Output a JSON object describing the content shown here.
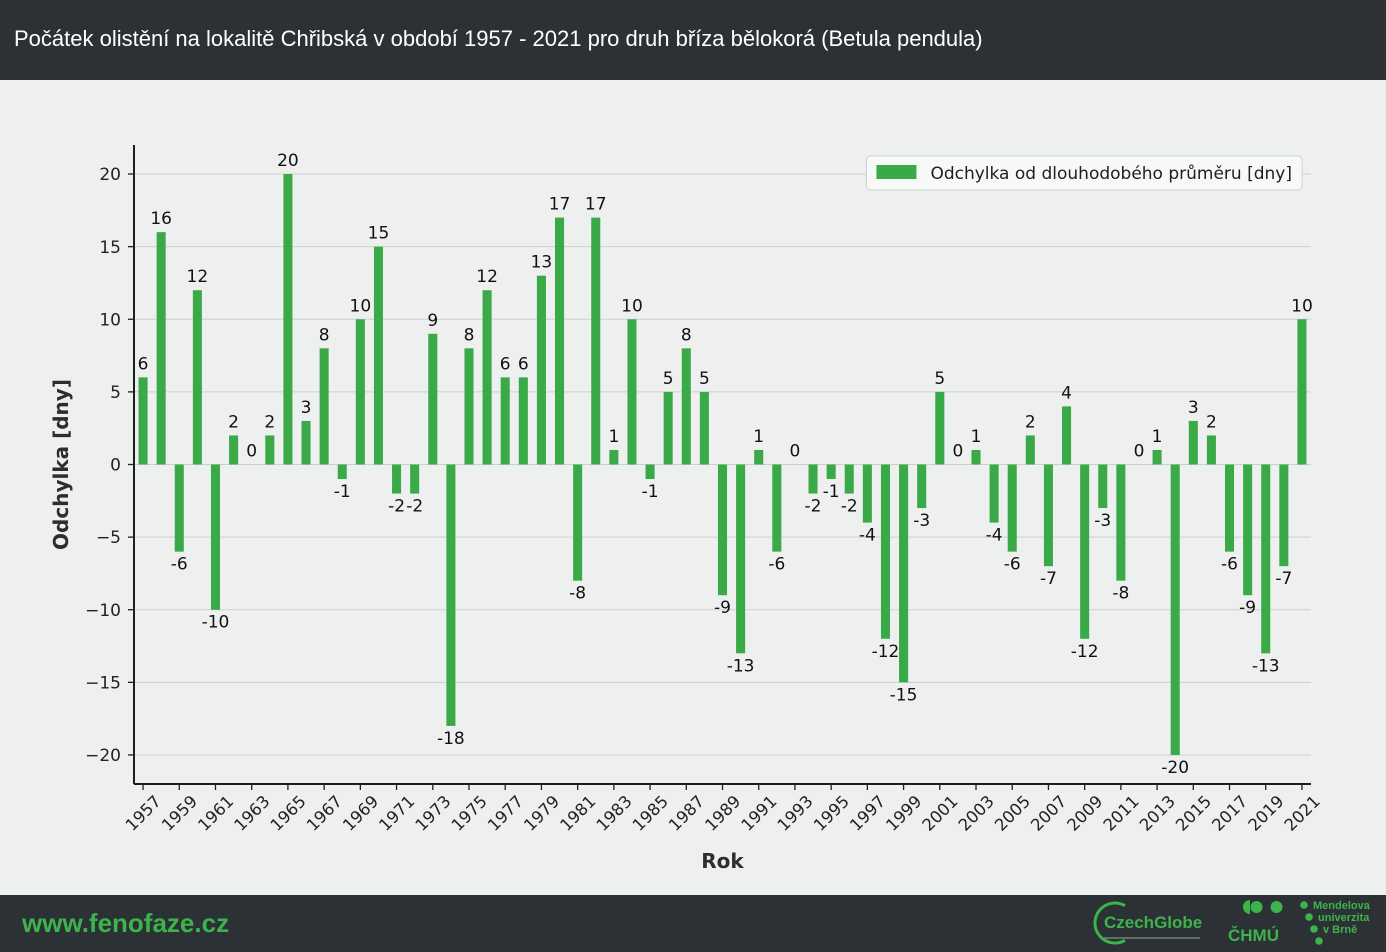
{
  "header": {
    "title": "Počátek olistění na lokalitě Chřibská v období 1957 - 2021 pro druh bříza bělokorá (Betula pendula)"
  },
  "colors": {
    "band_bg": "#2c3135",
    "page_bg": "#eef0f0",
    "bar": "#3aaa48",
    "brand_green": "#3cb44b"
  },
  "chart_data": {
    "type": "bar",
    "x": [
      1957,
      1958,
      1959,
      1960,
      1961,
      1962,
      1963,
      1964,
      1965,
      1966,
      1967,
      1968,
      1969,
      1970,
      1971,
      1972,
      1973,
      1974,
      1975,
      1976,
      1977,
      1978,
      1979,
      1980,
      1981,
      1982,
      1983,
      1984,
      1985,
      1986,
      1987,
      1988,
      1989,
      1990,
      1991,
      1992,
      1993,
      1994,
      1995,
      1996,
      1997,
      1998,
      1999,
      2000,
      2001,
      2002,
      2003,
      2004,
      2005,
      2006,
      2007,
      2008,
      2009,
      2010,
      2011,
      2012,
      2013,
      2014,
      2015,
      2016,
      2017,
      2018,
      2019,
      2020,
      2021
    ],
    "series": [
      {
        "name": "Odchylka od dlouhodobého průměru [dny]",
        "values": [
          6,
          16,
          -6,
          12,
          -10,
          2,
          0,
          2,
          20,
          3,
          8,
          -1,
          10,
          15,
          -2,
          -2,
          9,
          -18,
          8,
          12,
          6,
          6,
          13,
          17,
          -8,
          17,
          1,
          10,
          -1,
          5,
          8,
          5,
          -9,
          -13,
          1,
          -6,
          0,
          -2,
          -1,
          -2,
          -4,
          -12,
          -15,
          -3,
          5,
          0,
          1,
          -4,
          -6,
          2,
          -7,
          4,
          -12,
          -3,
          -8,
          0,
          1,
          -20,
          3,
          2,
          -6,
          -9,
          -13,
          -7,
          10
        ],
        "data_labels": [
          "6",
          "16",
          "-6",
          "12",
          "-10",
          "2",
          "0",
          "2",
          "20",
          "3",
          "8",
          "-1",
          "10",
          "15",
          "-2",
          "-2",
          "9",
          "-18",
          "8",
          "12",
          "6",
          "6",
          "13",
          "17",
          "-8",
          "17",
          "1",
          "10",
          "-1",
          "5",
          "8",
          "5",
          "-9",
          "-13",
          "1",
          "-6",
          "0",
          "-2",
          "-1",
          "-2",
          "-4",
          "-12",
          "-15",
          "-3",
          "5",
          "0",
          "1",
          "-4",
          "-6",
          "2",
          "-7",
          "4",
          "-12",
          "-3",
          "-8",
          "0",
          "1",
          "-20",
          "3",
          "2",
          "-6",
          "-9",
          "-13",
          "-7",
          "10"
        ]
      }
    ],
    "xlabel": "Rok",
    "ylabel": "Odchylka [dny]",
    "x_tick_labels": [
      "1957",
      "1959",
      "1961",
      "1963",
      "1965",
      "1967",
      "1969",
      "1971",
      "1973",
      "1975",
      "1977",
      "1979",
      "1981",
      "1983",
      "1985",
      "1987",
      "1989",
      "1991",
      "1993",
      "1995",
      "1997",
      "1999",
      "2001",
      "2003",
      "2005",
      "2007",
      "2009",
      "2011",
      "2013",
      "2015",
      "2017",
      "2019",
      "2021"
    ],
    "y_ticks": [
      20,
      15,
      10,
      5,
      0,
      -5,
      -10,
      -15,
      -20
    ],
    "y_tick_labels": [
      "20",
      "15",
      "10",
      "5",
      "0",
      "−5",
      "−10",
      "−15",
      "−20"
    ],
    "xlim": [
      1956.5,
      2021.5
    ],
    "ylim": [
      -22,
      22
    ],
    "grid": "horizontal",
    "legend": "upper right"
  },
  "footer": {
    "website": "www.fenofaze.cz",
    "logos": {
      "czechglobe": "CzechGlobe",
      "chmu": "ČHMÚ",
      "mendelu": [
        "Mendelova",
        "univerzita",
        "v Brně"
      ]
    }
  }
}
